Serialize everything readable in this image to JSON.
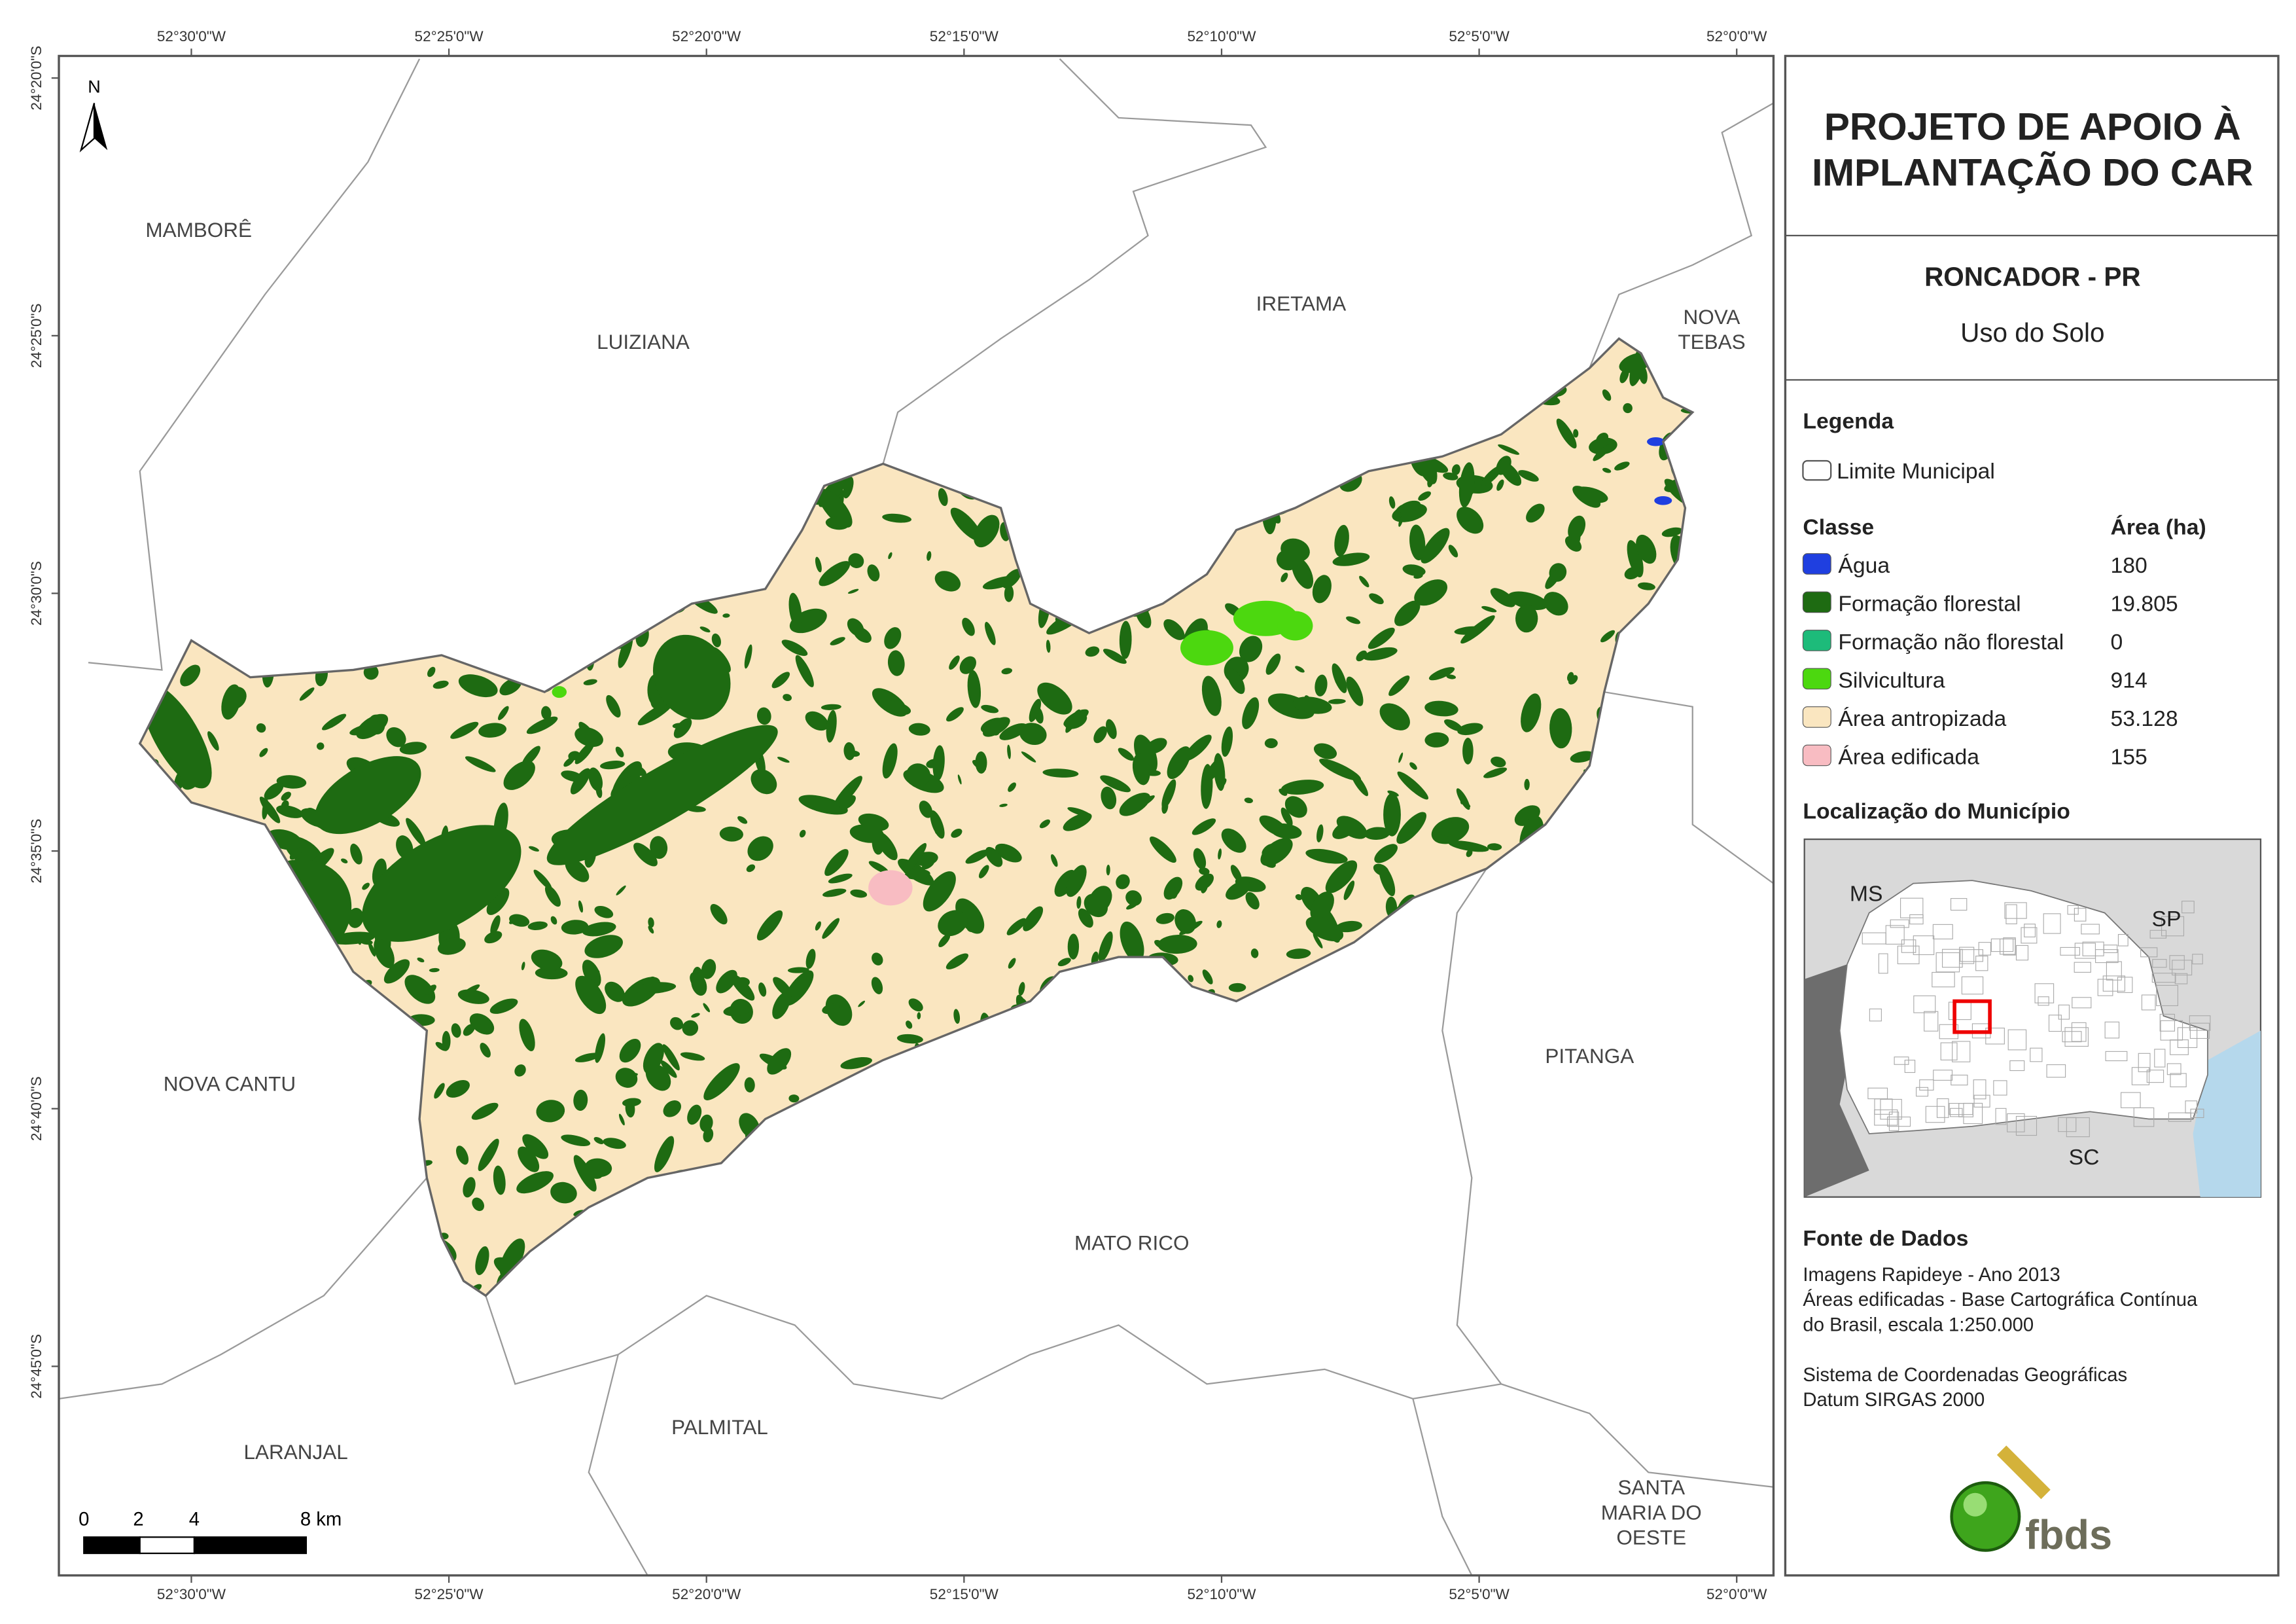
{
  "map": {
    "coord_labels": {
      "top": [
        "52°30'0\"W",
        "52°25'0\"W",
        "52°20'0\"W",
        "52°15'0\"W",
        "52°10'0\"W",
        "52°5'0\"W",
        "52°0'0\"W"
      ],
      "bottom": [
        "52°30'0\"W",
        "52°25'0\"W",
        "52°20'0\"W",
        "52°15'0\"W",
        "52°10'0\"W",
        "52°5'0\"W",
        "52°0'0\"W"
      ],
      "left": [
        "24°20'0\"S",
        "24°25'0\"S",
        "24°30'0\"S",
        "24°35'0\"S",
        "24°40'0\"S",
        "24°45'0\"S"
      ]
    },
    "north_label": "N",
    "places": [
      {
        "lines": [
          "MAMBORÊ"
        ]
      },
      {
        "lines": [
          "LUIZIANA"
        ]
      },
      {
        "lines": [
          "IRETAMA"
        ]
      },
      {
        "lines": [
          "NOVA",
          "TEBAS"
        ]
      },
      {
        "lines": [
          "NOVA CANTU"
        ]
      },
      {
        "lines": [
          "PITANGA"
        ]
      },
      {
        "lines": [
          "MATO RICO"
        ]
      },
      {
        "lines": [
          "PALMITAL"
        ]
      },
      {
        "lines": [
          "LARANJAL"
        ]
      },
      {
        "lines": [
          "SANTA",
          "MARIA DO",
          "OESTE"
        ]
      }
    ],
    "scale_bar": [
      "0",
      "2",
      "4",
      "8 km"
    ]
  },
  "panel": {
    "title_lines": [
      "PROJETO DE APOIO À",
      "IMPLANTAÇÃO DO CAR"
    ],
    "municipality": "RONCADOR - PR",
    "subtitle": "Uso do Solo",
    "legend": {
      "heading": "Legenda",
      "boundary": "Limite Municipal",
      "class_header": "Classe",
      "area_header": "Área (ha)",
      "classes": [
        {
          "name": "Água",
          "area": "180",
          "color": "#1f3fe0"
        },
        {
          "name": "Formação florestal",
          "area": "19.805",
          "color": "#1e6b12"
        },
        {
          "name": "Formação não florestal",
          "area": "0",
          "color": "#1dbb7a"
        },
        {
          "name": "Silvicultura",
          "area": "914",
          "color": "#4cd80f"
        },
        {
          "name": "Área antropizada",
          "area": "53.128",
          "color": "#fae6c0"
        },
        {
          "name": "Área edificada",
          "area": "155",
          "color": "#f8bcc2"
        }
      ]
    },
    "location": {
      "heading": "Localização do Município",
      "labels": [
        "MS",
        "SP",
        "SC"
      ]
    },
    "sources": {
      "heading": "Fonte de Dados",
      "lines": [
        "Imagens Rapideye - Ano 2013",
        "Áreas edificadas - Base Cartográfica Contínua",
        "do Brasil, escala 1:250.000",
        "",
        "Sistema de Coordenadas Geográficas",
        "Datum SIRGAS 2000"
      ]
    },
    "logo": "fbds"
  }
}
